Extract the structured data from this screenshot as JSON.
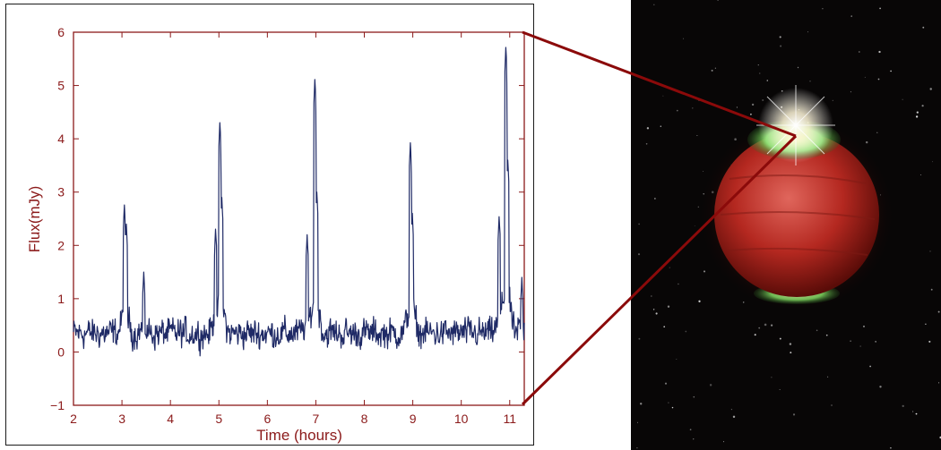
{
  "colors": {
    "axis": "#8b1a1a",
    "series": "#1f2a66",
    "connector": "#8b0a0a",
    "space": "#080606",
    "planet": "#c0302a",
    "aurora": "#8fe07a"
  },
  "icons": [
    "brown-dwarf-illustration"
  ],
  "chart_data": {
    "type": "line",
    "title": "",
    "xlabel": "Time (hours)",
    "ylabel": "Flux(mJy)",
    "xlim": [
      2,
      11.3
    ],
    "ylim": [
      -1,
      6
    ],
    "xticks": [
      "2",
      "3",
      "4",
      "5",
      "6",
      "7",
      "8",
      "9",
      "10",
      "11"
    ],
    "yticks": [
      "−1",
      "0",
      "1",
      "2",
      "3",
      "4",
      "5",
      "6"
    ],
    "grid": false,
    "legend": "none",
    "series": [
      {
        "baseline_mean": 0.35,
        "baseline_noise": 0.28,
        "x_step": 0.01,
        "bursts": [
          {
            "x": 3.05,
            "y": 2.6
          },
          {
            "x": 3.09,
            "y": 2.4
          },
          {
            "x": 3.45,
            "y": 1.5
          },
          {
            "x": 4.93,
            "y": 2.1
          },
          {
            "x": 5.02,
            "y": 4.1
          },
          {
            "x": 5.06,
            "y": 2.9
          },
          {
            "x": 6.82,
            "y": 2.2
          },
          {
            "x": 6.98,
            "y": 4.9
          },
          {
            "x": 7.02,
            "y": 3.0
          },
          {
            "x": 8.95,
            "y": 3.75
          },
          {
            "x": 8.99,
            "y": 2.6
          },
          {
            "x": 10.78,
            "y": 2.5
          },
          {
            "x": 10.92,
            "y": 5.45
          },
          {
            "x": 10.96,
            "y": 3.6
          },
          {
            "x": 11.25,
            "y": 1.4
          }
        ]
      }
    ]
  }
}
